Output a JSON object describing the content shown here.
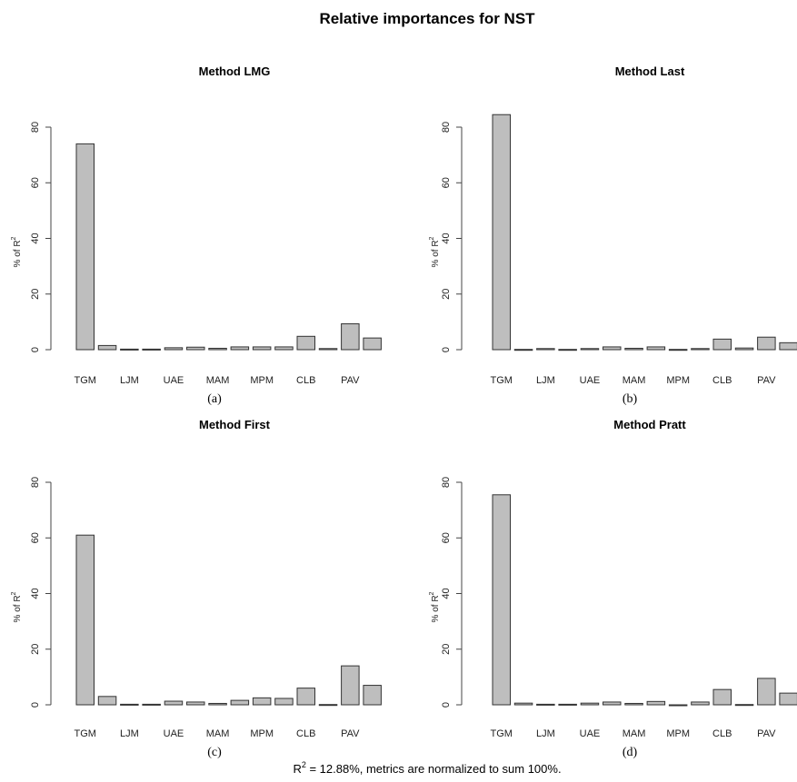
{
  "title": "Relative importances for NST",
  "footer": {
    "prefix": "R",
    "sup": "2",
    "suffix": " = 12.88%, metrics are normalized to sum 100%."
  },
  "ylabel": {
    "prefix": "% of R",
    "sup": "2"
  },
  "chart_data": [
    {
      "type": "bar",
      "title": "Method LMG",
      "sublabel": "(a)",
      "categories": [
        "TGM",
        "",
        "LJM",
        "",
        "UAE",
        "",
        "MAM",
        "",
        "MPM",
        "",
        "CLB",
        "",
        "PAV",
        ""
      ],
      "values": [
        74,
        1.5,
        0.2,
        0.2,
        0.7,
        0.9,
        0.5,
        1.0,
        1.0,
        1.0,
        4.8,
        0.4,
        9.3,
        4.2
      ],
      "yticks": [
        0,
        20,
        40,
        60,
        80
      ],
      "ylim": [
        0,
        88
      ]
    },
    {
      "type": "bar",
      "title": "Method Last",
      "sublabel": "(b)",
      "categories": [
        "TGM",
        "",
        "LJM",
        "",
        "UAE",
        "",
        "MAM",
        "",
        "MPM",
        "",
        "CLB",
        "",
        "PAV",
        ""
      ],
      "values": [
        84.5,
        0.1,
        0.4,
        0.1,
        0.4,
        1.0,
        0.5,
        1.0,
        0.1,
        0.4,
        3.8,
        0.6,
        4.5,
        2.5
      ],
      "yticks": [
        0,
        20,
        40,
        60,
        80
      ],
      "ylim": [
        0,
        88
      ]
    },
    {
      "type": "bar",
      "title": "Method First",
      "sublabel": "(c)",
      "categories": [
        "TGM",
        "",
        "LJM",
        "",
        "UAE",
        "",
        "MAM",
        "",
        "MPM",
        "",
        "CLB",
        "",
        "PAV",
        ""
      ],
      "values": [
        61,
        3,
        0.2,
        0.2,
        1.3,
        1.0,
        0.5,
        1.6,
        2.5,
        2.3,
        6.0,
        0.1,
        14,
        7
      ],
      "yticks": [
        0,
        20,
        40,
        60,
        80
      ],
      "ylim": [
        0,
        88
      ]
    },
    {
      "type": "bar",
      "title": "Method Pratt",
      "sublabel": "(d)",
      "categories": [
        "TGM",
        "",
        "LJM",
        "",
        "UAE",
        "",
        "MAM",
        "",
        "MPM",
        "",
        "CLB",
        "",
        "PAV",
        ""
      ],
      "values": [
        75.5,
        0.6,
        0.2,
        0.2,
        0.6,
        1.0,
        0.5,
        1.2,
        -0.3,
        1.0,
        5.5,
        0.1,
        9.5,
        4.2
      ],
      "yticks": [
        0,
        20,
        40,
        60,
        80
      ],
      "ylim": [
        0,
        88
      ]
    }
  ]
}
